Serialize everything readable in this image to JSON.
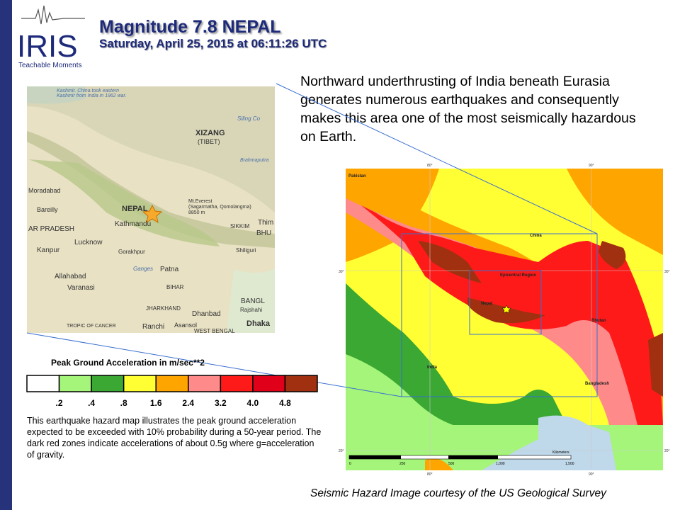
{
  "header": {
    "logo": {
      "name": "IRIS",
      "tagline": "Teachable Moments"
    },
    "title": "Magnitude 7.8 NEPAL",
    "subtitle": "Saturday,  April 25, 2015 at 06:11:26 UTC"
  },
  "intro": "Northward underthrusting of India beneath Eurasia generates numerous earthquakes and consequently makes this area one of the most seismically hazardous on Earth.",
  "left_map": {
    "labels": [
      "Kashmir. China took eastern",
      "Kashmir from India in 1962 war.",
      "XIZANG",
      "(TIBET)",
      "Siling Co",
      "Brahmaputra",
      "Moradabad",
      "Bareilly",
      "AR PRADESH",
      "NEPAL",
      "Kathmandu",
      "Mt.Everest",
      "(Sagarmatha, Qomolangma)",
      "8850 m",
      "SIKKIM",
      "Thim",
      "BHU",
      "Shiliguri",
      "Kanpur",
      "Lucknow",
      "Gorakhpur",
      "Allahabad",
      "Varanasi",
      "Ganges",
      "Patna",
      "BIHAR",
      "JHARKHAND",
      "Dhanbad",
      "Ranchi",
      "Asansol",
      "TROPIC OF CANCER",
      "WEST BENGAL",
      "BANGL",
      "Rajshahi",
      "Dhaka"
    ]
  },
  "right_map": {
    "labels": [
      "Pakistan",
      "China",
      "Epicentral Region",
      "Nepal",
      "Bhutan",
      "India",
      "Bangladesh"
    ],
    "graticule": [
      "80°",
      "90°",
      "30°",
      "30°",
      "20°",
      "20°",
      "80°",
      "90°"
    ],
    "scale": {
      "title": "Kilometers",
      "ticks": [
        "0",
        "250",
        "500",
        "1,000",
        "1,500"
      ]
    }
  },
  "legend": {
    "title": "Peak Ground Acceleration in m/sec**2",
    "colors": [
      "#ffffff",
      "#a5f57a",
      "#3aa832",
      "#ffff33",
      "#ffa500",
      "#ff8a8a",
      "#ff1a1a",
      "#e0001a",
      "#a03010"
    ],
    "labels": [
      ".2",
      ".4",
      ".8",
      "1.6",
      "2.4",
      "3.2",
      "4.0",
      "4.8"
    ]
  },
  "caption": "This earthquake hazard map illustrates the peak ground acceleration expected to be exceeded with 10% probability during a 50-year period.  The dark red zones indicate accelerations of about 0.5g where g=acceleration of gravity.",
  "credit": "Seismic Hazard Image courtesy of the US Geological Survey"
}
